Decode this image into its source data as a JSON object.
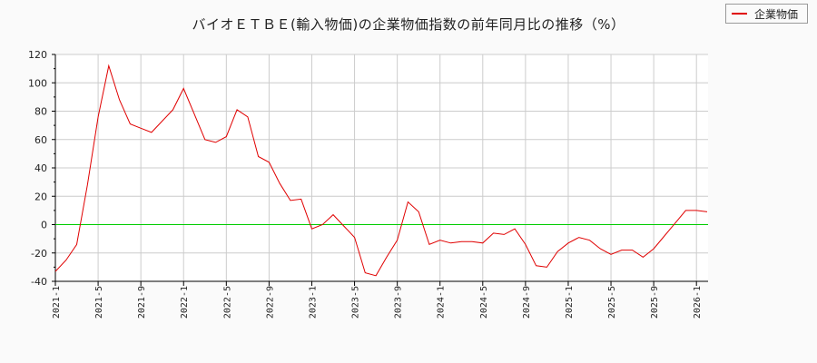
{
  "title": "バイオＥＴＢＥ(輸入物価)の企業物価指数の前年同月比の推移（%）",
  "legend": {
    "label": "企業物価",
    "color": "#e00000"
  },
  "colors": {
    "line": "#e00000",
    "zero_line": "#00cc00",
    "grid": "#cccccc",
    "plot_bg": "#ffffff",
    "page_bg": "#fafafa"
  },
  "chart_data": {
    "type": "line",
    "title": "バイオＥＴＢＥ(輸入物価)の企業物価指数の前年同月比の推移（%）",
    "xlabel": "",
    "ylabel": "",
    "ylim": [
      -40,
      120
    ],
    "yticks": [
      120,
      100,
      80,
      60,
      40,
      20,
      0,
      -20,
      -40
    ],
    "xticks": [
      "2021-1",
      "2021-5",
      "2021-9",
      "2022-1",
      "2022-5",
      "2022-9",
      "2023-1",
      "2023-5",
      "2023-9",
      "2024-1",
      "2024-5",
      "2024-9",
      "2025-1",
      "2025-5",
      "2025-9",
      "2026-1"
    ],
    "grid": true,
    "legend_position": "top-right",
    "x": [
      "2021-1",
      "2021-2",
      "2021-3",
      "2021-4",
      "2021-5",
      "2021-6",
      "2021-7",
      "2021-8",
      "2021-9",
      "2021-10",
      "2021-11",
      "2021-12",
      "2022-1",
      "2022-2",
      "2022-3",
      "2022-4",
      "2022-5",
      "2022-6",
      "2022-7",
      "2022-8",
      "2022-9",
      "2022-10",
      "2022-11",
      "2022-12",
      "2023-1",
      "2023-2",
      "2023-3",
      "2023-4",
      "2023-5",
      "2023-6",
      "2023-7",
      "2023-8",
      "2023-9",
      "2023-10",
      "2023-11",
      "2023-12",
      "2024-1",
      "2024-2",
      "2024-3",
      "2024-4",
      "2024-5",
      "2024-6",
      "2024-7",
      "2024-8",
      "2024-9",
      "2024-10",
      "2024-11",
      "2024-12",
      "2025-1",
      "2025-2",
      "2025-3",
      "2025-4",
      "2025-5",
      "2025-6",
      "2025-7",
      "2025-8",
      "2025-9",
      "2025-10",
      "2025-11",
      "2025-12",
      "2026-1",
      "2026-2"
    ],
    "series": [
      {
        "name": "企業物価",
        "values": [
          -33,
          -25,
          -14,
          28,
          76,
          112,
          88,
          71,
          68,
          65,
          73,
          81,
          96,
          78,
          60,
          58,
          62,
          81,
          76,
          48,
          44,
          29,
          17,
          18,
          -3,
          0,
          7,
          -1,
          -9,
          -34,
          -36,
          -23,
          -11,
          16,
          9,
          -14,
          -11,
          -13,
          -12,
          -12,
          -13,
          -6,
          -7,
          -3,
          -14,
          -29,
          -30,
          -19,
          -13,
          -9,
          -11,
          -17,
          -21,
          -18,
          -18,
          -23,
          -17,
          -8,
          1,
          10,
          10,
          9
        ]
      }
    ]
  }
}
